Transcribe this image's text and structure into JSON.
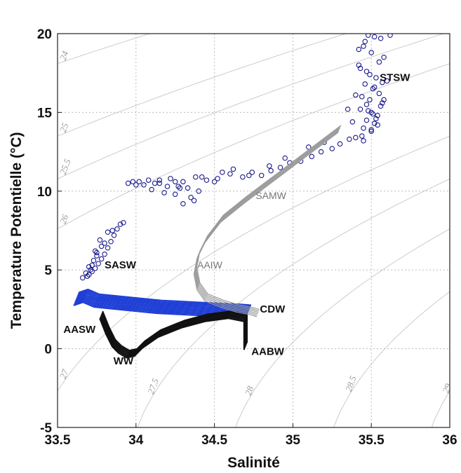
{
  "chart_data": {
    "type": "scatter",
    "title": "",
    "xlabel": "Salinité",
    "ylabel": "Temperature Potentielle (°C)",
    "xlim": [
      33.5,
      36
    ],
    "ylim": [
      -5,
      20
    ],
    "xticks": [
      33.5,
      34,
      34.5,
      35,
      35.5,
      36
    ],
    "yticks": [
      -5,
      0,
      5,
      10,
      15,
      20
    ],
    "xtick_labels": [
      "33.5",
      "34",
      "34.5",
      "35",
      "35.5",
      "36"
    ],
    "ytick_labels": [
      "-5",
      "0",
      "5",
      "10",
      "15",
      "20"
    ],
    "grid": true,
    "isopycnals": [
      {
        "label": "24",
        "sigma": 24
      },
      {
        "label": "25",
        "sigma": 25
      },
      {
        "label": "25.5",
        "sigma": 25.5
      },
      {
        "label": "26",
        "sigma": 26
      },
      {
        "label": "27",
        "sigma": 27
      },
      {
        "label": "27.5",
        "sigma": 27.5
      },
      {
        "label": "28",
        "sigma": 28
      },
      {
        "label": "28.5",
        "sigma": 28.5
      },
      {
        "label": "29",
        "sigma": 29
      }
    ],
    "water_mass_labels": [
      {
        "text": "STSW",
        "x": 35.65,
        "y": 17.0,
        "style": "bold"
      },
      {
        "text": "SAMW",
        "x": 34.86,
        "y": 9.5,
        "style": "grey"
      },
      {
        "text": "SASW",
        "x": 33.9,
        "y": 5.1,
        "style": "bold"
      },
      {
        "text": "AAIW",
        "x": 34.47,
        "y": 5.1,
        "style": "grey"
      },
      {
        "text": "CDW",
        "x": 34.87,
        "y": 2.3,
        "style": "bold"
      },
      {
        "text": "AASW",
        "x": 33.64,
        "y": 1.0,
        "style": "bold"
      },
      {
        "text": "AABW",
        "x": 34.84,
        "y": -0.4,
        "style": "bold"
      },
      {
        "text": "WW",
        "x": 33.92,
        "y": -1.0,
        "style": "bold"
      }
    ],
    "series": [
      {
        "kind": "open-circles",
        "color": "#1a1a8c",
        "x": [
          35.48,
          35.52,
          35.56,
          35.62,
          35.45,
          35.5,
          35.58,
          35.42,
          35.47,
          35.53,
          35.6,
          35.46,
          35.51,
          35.55,
          35.44,
          35.49,
          35.57,
          35.43,
          35.5,
          35.54,
          35.47,
          35.52,
          35.45,
          35.5,
          35.56,
          35.48,
          35.53,
          35.44,
          35.58,
          35.51,
          35.46,
          35.55,
          35.49,
          35.42,
          35.52,
          35.47,
          35.54,
          35.5,
          35.57,
          35.45,
          35.4,
          35.36,
          35.3,
          35.25,
          35.18,
          35.12,
          35.05,
          34.98,
          34.92,
          34.86,
          34.8,
          34.74,
          34.68,
          34.6,
          34.52,
          34.45,
          34.38,
          34.3,
          34.22,
          34.15,
          34.08,
          34.02,
          33.98,
          33.95,
          34.2,
          34.35,
          34.1,
          34.25,
          34.05,
          34.4,
          34.3,
          34.18,
          34.28,
          33.92,
          33.88,
          33.86,
          33.84,
          33.82,
          33.8,
          33.78,
          33.76,
          33.74,
          33.72,
          33.7,
          33.75,
          33.8,
          33.85,
          33.9,
          33.72,
          33.69,
          33.71,
          33.74,
          33.77,
          33.68,
          33.73,
          33.78,
          33.7,
          33.66,
          33.75,
          33.82,
          35.35,
          35.38,
          35.4,
          35.43,
          35.2,
          35.1,
          34.95,
          34.85,
          34.72,
          34.62,
          34.5,
          34.42,
          34.33,
          34.25,
          34.12,
          34.0,
          34.15,
          34.27,
          34.37,
          34.55
        ],
        "y": [
          19.9,
          19.8,
          19.7,
          19.9,
          19.2,
          18.8,
          18.5,
          18.0,
          17.6,
          17.2,
          17.0,
          16.8,
          16.5,
          16.2,
          16.0,
          15.8,
          15.6,
          15.2,
          15.0,
          14.8,
          14.5,
          14.3,
          14.0,
          13.8,
          15.4,
          15.1,
          14.6,
          13.5,
          15.8,
          14.9,
          19.5,
          18.2,
          17.4,
          19.0,
          16.6,
          15.5,
          14.2,
          13.9,
          16.9,
          13.2,
          13.4,
          13.3,
          13.0,
          12.7,
          12.5,
          12.2,
          11.9,
          11.8,
          11.5,
          11.3,
          11.0,
          11.2,
          10.9,
          11.1,
          10.8,
          10.7,
          10.9,
          10.6,
          10.8,
          10.5,
          10.7,
          10.6,
          10.6,
          10.5,
          10.3,
          9.6,
          10.1,
          9.8,
          10.4,
          10.0,
          9.2,
          9.9,
          10.2,
          8.0,
          7.6,
          7.2,
          6.8,
          6.4,
          6.0,
          5.7,
          5.4,
          5.1,
          4.9,
          4.7,
          5.9,
          6.7,
          7.5,
          7.9,
          5.3,
          4.6,
          5.0,
          6.2,
          6.9,
          4.8,
          5.6,
          6.5,
          5.2,
          4.5,
          6.1,
          7.4,
          15.2,
          14.4,
          16.1,
          17.8,
          13.1,
          12.8,
          12.1,
          11.6,
          11.0,
          11.4,
          10.6,
          10.9,
          10.2,
          10.6,
          10.5,
          10.4,
          10.7,
          10.3,
          9.4,
          11.2
        ]
      },
      {
        "kind": "profile-lines",
        "color": "#1f3fd6",
        "x": [
          33.62,
          33.68,
          33.75,
          33.85,
          33.95,
          34.05,
          34.15,
          34.25,
          34.35,
          34.45,
          34.55,
          34.65,
          34.72
        ],
        "y": [
          3.2,
          3.4,
          3.1,
          3.0,
          2.9,
          2.8,
          2.7,
          2.65,
          2.6,
          2.55,
          2.5,
          2.45,
          2.4
        ]
      },
      {
        "kind": "profile-lines",
        "color": "#111111",
        "x": [
          33.78,
          33.82,
          33.86,
          33.9,
          33.95,
          34.0,
          34.05,
          34.15,
          34.3,
          34.45,
          34.6,
          34.7,
          34.7
        ],
        "y": [
          2.2,
          1.2,
          0.4,
          0.0,
          -0.3,
          -0.2,
          0.3,
          1.0,
          1.6,
          2.0,
          2.2,
          2.0,
          0.2
        ]
      },
      {
        "kind": "profile-lines",
        "color": "#9a9a9a",
        "x": [
          35.3,
          35.1,
          34.9,
          34.7,
          34.55,
          34.45,
          34.4,
          34.38,
          34.4,
          34.45,
          34.55,
          34.65,
          34.75,
          34.78
        ],
        "y": [
          14.0,
          12.5,
          11.0,
          9.5,
          8.3,
          7.0,
          6.0,
          5.0,
          4.0,
          3.3,
          2.9,
          2.6,
          2.4,
          2.3
        ]
      }
    ]
  }
}
